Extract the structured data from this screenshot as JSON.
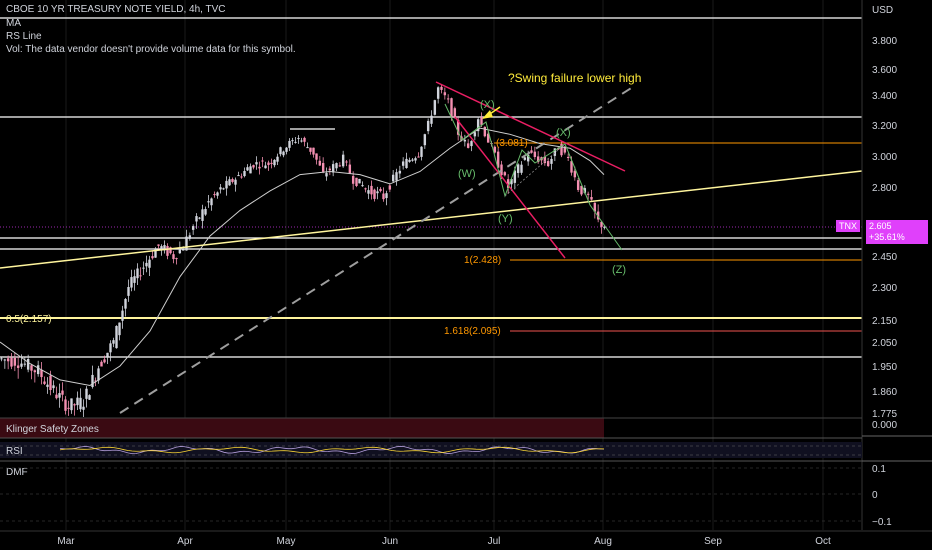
{
  "legend": {
    "title": "CBOE 10 YR TREASURY NOTE YIELD, 4h, TVC",
    "indicators": [
      "MA",
      "RS Line",
      "Vol: The data vendor doesn't provide volume data for this symbol."
    ]
  },
  "price_axis": {
    "unit": "USD",
    "ticks": [
      "3.800",
      "3.600",
      "3.400",
      "3.200",
      "3.000",
      "2.800",
      "2.600",
      "2.450",
      "2.300",
      "2.150",
      "2.050",
      "1.950",
      "1.860",
      "1.775"
    ]
  },
  "current": {
    "symbol": "TNX",
    "price": "2.605",
    "change": "+35.61%",
    "accent": "#e040fb"
  },
  "annotations": {
    "swing_note": "?Swing failure lower high",
    "wave_x1": "(X)",
    "wave_x2": "(X)",
    "wave_w": "(W)",
    "wave_y": "(Y)",
    "wave_z": "(Z)",
    "fib_top": "(3.081)",
    "fib_1": "1(2.428)",
    "fib_05": "0.5(2.157)",
    "fib_1618": "1.618(2.095)"
  },
  "panes": {
    "klinger": {
      "label": "Klinger Safety Zones",
      "value": "0.000"
    },
    "rsi": {
      "label": "RSI"
    },
    "dmf": {
      "label": "DMF",
      "ticks": [
        "0.1",
        "0",
        "−0.1"
      ]
    }
  },
  "time_axis": [
    "Mar",
    "Apr",
    "May",
    "Jun",
    "Jul",
    "Aug",
    "Sep",
    "Oct"
  ],
  "colors": {
    "up": "#d1d4dc",
    "down": "#f48fb1",
    "ma": "#cfcfcf",
    "trendline": "#fff59d",
    "channel": "#e91e63",
    "fib": "#ff9800",
    "wave": "#66bb6a",
    "dashed": "#9e9e9e"
  },
  "chart_data": {
    "type": "candlestick",
    "title": "CBOE 10 YR TREASURY NOTE YIELD, 4h, TVC",
    "interval": "4h",
    "x_range": [
      "Feb",
      "Oct"
    ],
    "y_unit": "USD",
    "series": [
      {
        "name": "TNX",
        "approx_close_path": [
          {
            "x": "Feb",
            "y": 1.98
          },
          {
            "x": "Mar",
            "y": 1.8
          },
          {
            "x": "Mar",
            "y": 1.95
          },
          {
            "x": "Apr",
            "y": 2.55
          },
          {
            "x": "Apr",
            "y": 2.7
          },
          {
            "x": "May",
            "y": 2.95
          },
          {
            "x": "May",
            "y": 3.15
          },
          {
            "x": "May",
            "y": 2.85
          },
          {
            "x": "Jun",
            "y": 2.75
          },
          {
            "x": "Jun",
            "y": 3.05
          },
          {
            "x": "Jun",
            "y": 3.45
          },
          {
            "x": "Jul",
            "y": 3.0
          },
          {
            "x": "Jul",
            "y": 2.8
          },
          {
            "x": "Jul",
            "y": 3.08
          },
          {
            "x": "Aug",
            "y": 2.7
          },
          {
            "x": "Aug",
            "y": 2.605
          }
        ]
      }
    ],
    "horizontal_levels": [
      3.95,
      3.25,
      3.081,
      2.57,
      2.5,
      2.428,
      2.157,
      2.095,
      1.99
    ],
    "fib_levels": [
      {
        "label": "(3.081)",
        "y": 3.081
      },
      {
        "label": "1(2.428)",
        "y": 2.428
      },
      {
        "label": "0.5(2.157)",
        "y": 2.157
      },
      {
        "label": "1.618(2.095)",
        "y": 2.095
      }
    ]
  }
}
